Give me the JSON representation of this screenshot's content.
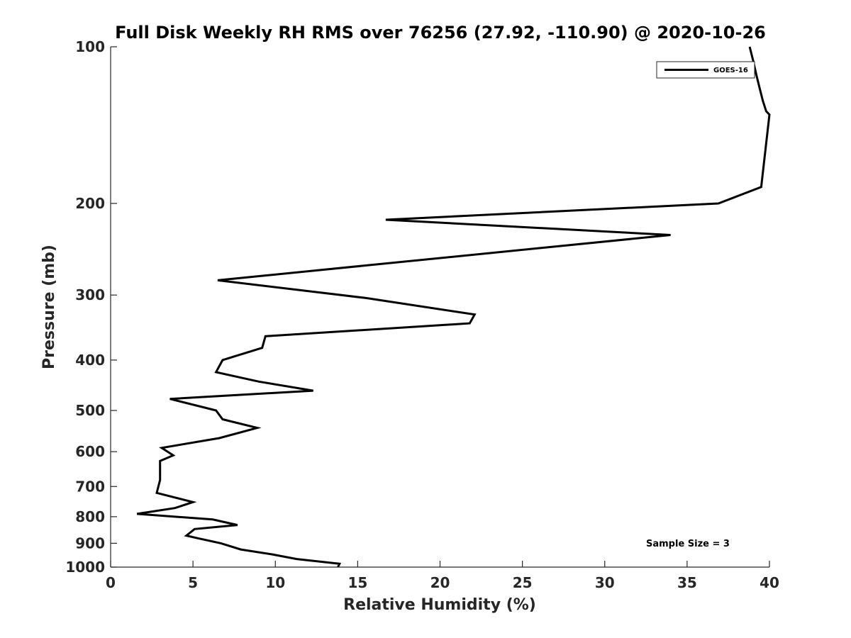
{
  "chart_data": {
    "type": "line",
    "title": "Full Disk Weekly RH RMS over 76256 (27.92, -110.90) @ 2020-10-26",
    "xlabel": "Relative Humidity (%)",
    "ylabel": "Pressure (mb)",
    "xlim": [
      0,
      40
    ],
    "ylim": [
      100,
      1000
    ],
    "y_scale": "log",
    "y_reversed": true,
    "grid": false,
    "x_ticks": [
      0,
      5,
      10,
      15,
      20,
      25,
      30,
      35,
      40
    ],
    "y_ticks": [
      100,
      200,
      300,
      400,
      500,
      600,
      700,
      800,
      900,
      1000
    ],
    "legend": {
      "placement": "top-right",
      "entries": [
        "GOES-16"
      ]
    },
    "annotation": "Sample Size = 3",
    "series": [
      {
        "name": "GOES-16",
        "color": "#000000",
        "x": [
          38.8,
          39.0,
          39.2,
          39.4,
          39.6,
          39.8,
          40.0,
          39.5,
          36.9,
          16.7,
          34.0,
          6.5,
          15.5,
          22.1,
          21.8,
          9.4,
          9.2,
          6.8,
          6.4,
          9.0,
          12.3,
          3.6,
          6.4,
          6.8,
          8.9,
          6.6,
          3.1,
          3.8,
          3.0,
          3.0,
          3.0,
          2.8,
          5.0,
          3.9,
          1.6,
          6.2,
          7.7,
          5.1,
          4.6,
          5.3,
          6.7,
          7.9,
          9.8,
          11.3,
          13.9,
          13.8
        ],
        "y": [
          100,
          106,
          113,
          120,
          127,
          133,
          135,
          186,
          200,
          215,
          230,
          281,
          304,
          327,
          340,
          360,
          379,
          400,
          422,
          440,
          458,
          475,
          500,
          520,
          540,
          565,
          590,
          610,
          625,
          650,
          680,
          720,
          750,
          770,
          790,
          810,
          830,
          845,
          870,
          880,
          900,
          925,
          945,
          965,
          985,
          1000
        ]
      }
    ]
  }
}
